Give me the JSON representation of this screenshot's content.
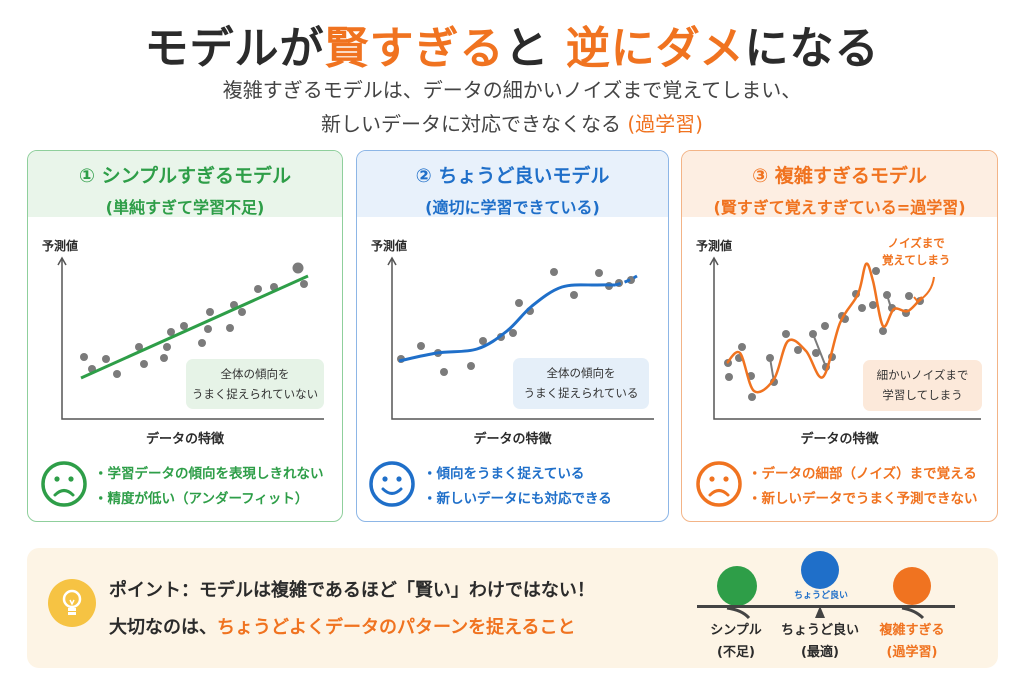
{
  "title": {
    "part1": "モデルが",
    "part2": "賢すぎる",
    "part3": "と",
    "part4": "逆にダメ",
    "part5": "になる"
  },
  "subtitle": {
    "line1": "複雑すぎるモデルは、データの細かいノイズまで覚えてしまい、",
    "line2": "新しいデータに対応できなくなる",
    "line2_highlight": "(過学習)"
  },
  "colors": {
    "green": "#2e9e48",
    "blue": "#1f6fc9",
    "orange": "#f07320",
    "title": "#2b2b2b"
  },
  "panels": [
    {
      "title": "① シンプルすぎるモデル",
      "subtitle": "(単純すぎて学習不足)",
      "y_label": "予測値",
      "x_label": "データの特徴",
      "note_line1": "全体の傾向を",
      "note_line2": "うまく捉えられていない",
      "face_icon": "frown-face",
      "bullets": [
        "・学習データの傾向を表現しきれない",
        "・精度が低い（アンダーフィット）"
      ]
    },
    {
      "title": "② ちょうど良いモデル",
      "subtitle": "(適切に学習できている)",
      "y_label": "予測値",
      "x_label": "データの特徴",
      "note_line1": "全体の傾向を",
      "note_line2": "うまく捉えられている",
      "face_icon": "smile-face",
      "bullets": [
        "・傾向をうまく捉えている",
        "・新しいデータにも対応できる"
      ]
    },
    {
      "title": "③ 複雑すぎるモデル",
      "subtitle": "(賢すぎて覚えすぎている=過学習)",
      "y_label": "予測値",
      "x_label": "データの特徴",
      "note_line1": "細かいノイズまで",
      "note_line2": "学習してしまう",
      "annotation_line1": "ノイズまで",
      "annotation_line2": "覚えてしまう",
      "face_icon": "frown-face",
      "bullets": [
        "・データの細部（ノイズ）まで覚える",
        "・新しいデータでうまく予測できない"
      ]
    }
  ],
  "bottom": {
    "icon": "lightbulb-icon",
    "line1": "ポイント：モデルは複雑であるほど「賢い」わけではない！",
    "line2_prefix": "大切なのは、",
    "line2_highlight": "ちょうどよくデータのパターンを捉えること",
    "balance_top_label": "ちょうど良い",
    "labels": [
      {
        "l1": "シンプル",
        "l2": "(不足)"
      },
      {
        "l1": "ちょうど良い",
        "l2": "(最適)"
      },
      {
        "l1": "複雑すぎる",
        "l2": "(過学習)"
      }
    ]
  }
}
